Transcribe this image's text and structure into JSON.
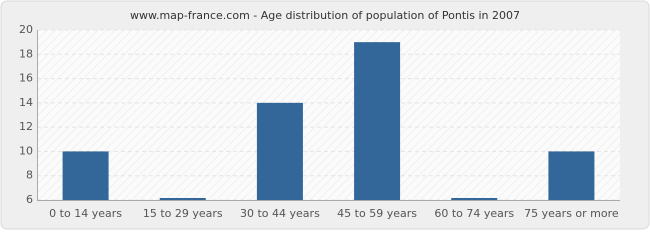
{
  "chart_data": {
    "type": "bar",
    "title": "www.map-france.com - Age distribution of population of Pontis in 2007",
    "categories": [
      "0 to 14 years",
      "15 to 29 years",
      "30 to 44 years",
      "45 to 59 years",
      "60 to 74 years",
      "75 years or more"
    ],
    "values": [
      10,
      6,
      14,
      19,
      6,
      10
    ],
    "color": "#336699",
    "ylim": [
      6,
      20
    ],
    "yticks": [
      6,
      8,
      10,
      12,
      14,
      16,
      18,
      20
    ],
    "grid": true
  }
}
